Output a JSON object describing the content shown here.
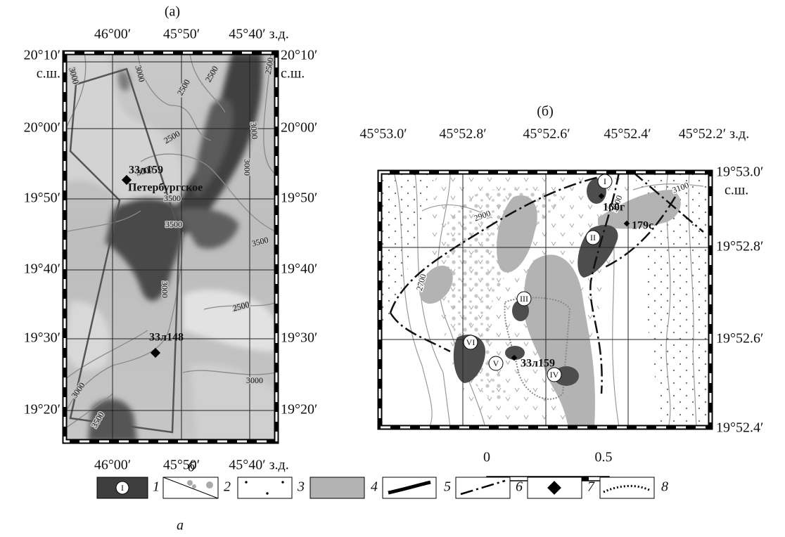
{
  "panel_a": {
    "label": "(а)",
    "top_ticks": [
      "46°00′",
      "45°50′",
      "45°40′ з.д."
    ],
    "bottom_ticks": [
      "46°00′",
      "45°50′",
      "45°40′ з.д."
    ],
    "left_ticks": [
      "20°10′",
      "20°00′",
      "19°50′",
      "19°40′",
      "19°30′",
      "19°20′"
    ],
    "right_ticks": [
      "20°10′",
      "20°00′",
      "19°50′",
      "19°40′",
      "19°30′",
      "19°20′"
    ],
    "north_label_left": "с.ш.",
    "north_label_right": "с.ш.",
    "contour_labels": [
      3000,
      3000,
      2500,
      2500,
      2500,
      3000,
      2500,
      3000,
      3000,
      3500,
      3500,
      3500,
      3000,
      2500,
      3000,
      3500,
      3000
    ],
    "stations": [
      {
        "label": "33л159"
      },
      {
        "label": "33л148"
      }
    ],
    "place_name": "Петербургское"
  },
  "panel_b": {
    "label": "(б)",
    "top_ticks": [
      "45°53.0′",
      "45°52.8′",
      "45°52.6′",
      "45°52.4′",
      "45°52.2′ з.д."
    ],
    "right_ticks": [
      "19°53.0′",
      "19°52.8′",
      "19°52.6′",
      "19°52.4′"
    ],
    "north_label": "с.ш.",
    "contour_labels": [
      2900,
      3000,
      3100,
      2700
    ],
    "zones": [
      "I",
      "II",
      "III",
      "IV",
      "V",
      "VI"
    ],
    "stations": [
      {
        "label": "160г"
      },
      {
        "label": "179с"
      },
      {
        "label": "33л159"
      }
    ],
    "scale": [
      "0",
      "0.5"
    ]
  },
  "legend": {
    "numbers": [
      "1",
      "2",
      "3",
      "4",
      "5",
      "6",
      "7",
      "8"
    ],
    "symbol_zone": "I",
    "sublabel_top": "б",
    "sublabel_bottom": "а"
  }
}
